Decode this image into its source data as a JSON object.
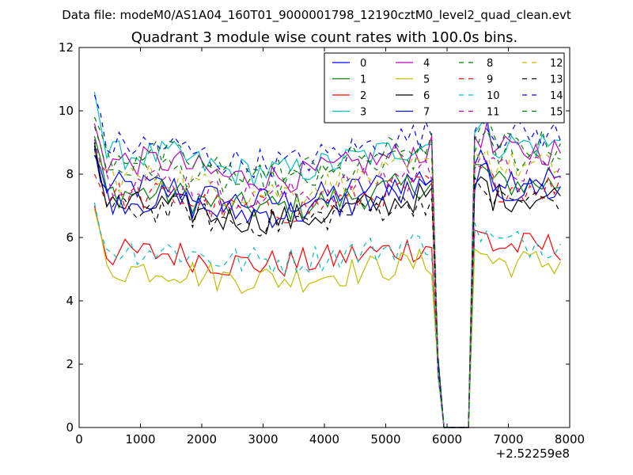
{
  "chart_data": {
    "type": "line",
    "suptitle": "Data file: modeM0/AS1A04_160T01_9000001798_12190cztM0_level2_quad_clean.evt",
    "title": "Quadrant 3 module wise count rates with 100.0s bins.",
    "xlabel": "",
    "ylabel": "",
    "x_offset_label": "+2.52259e8",
    "xlim": [
      0,
      8000
    ],
    "ylim": [
      0,
      12
    ],
    "x_ticks": [
      0,
      1000,
      2000,
      3000,
      4000,
      5000,
      6000,
      7000,
      8000
    ],
    "x_tick_labels": [
      "0",
      "1000",
      "2000",
      "3000",
      "4000",
      "5000",
      "6000",
      "7000",
      "8000"
    ],
    "y_ticks": [
      0,
      2,
      4,
      6,
      8,
      10,
      12
    ],
    "y_tick_labels": [
      "0",
      "2",
      "4",
      "6",
      "8",
      "10",
      "12"
    ],
    "grid": false,
    "legend_position": "top-right",
    "gap": {
      "start": 5900,
      "end": 6400
    },
    "x_start": 250,
    "x_end": 7900,
    "x_step": 100,
    "series": [
      {
        "name": "0",
        "color": "#0000ff",
        "dash": "solid",
        "base": 7.6,
        "start": 8.6
      },
      {
        "name": "1",
        "color": "#008000",
        "dash": "solid",
        "base": 7.4,
        "start": 9.2
      },
      {
        "name": "2",
        "color": "#ff0000",
        "dash": "solid",
        "base": 5.5,
        "start": 7.0
      },
      {
        "name": "3",
        "color": "#00bfbf",
        "dash": "solid",
        "base": 8.6,
        "start": 10.6
      },
      {
        "name": "4",
        "color": "#bf00bf",
        "dash": "solid",
        "base": 8.4,
        "start": 9.6
      },
      {
        "name": "5",
        "color": "#bfbf00",
        "dash": "solid",
        "base": 5.0,
        "start": 6.9
      },
      {
        "name": "6",
        "color": "#000000",
        "dash": "solid",
        "base": 7.0,
        "start": 9.0
      },
      {
        "name": "7",
        "color": "#0000ff",
        "dash": "solid",
        "base": 7.2,
        "start": 8.8
      },
      {
        "name": "8",
        "color": "#008000",
        "dash": "dashed",
        "base": 8.2,
        "start": 9.5
      },
      {
        "name": "9",
        "color": "#ff0000",
        "dash": "dashed",
        "base": 7.3,
        "start": 8.0
      },
      {
        "name": "10",
        "color": "#00bfbf",
        "dash": "dashed",
        "base": 5.6,
        "start": 7.1
      },
      {
        "name": "11",
        "color": "#bf00bf",
        "dash": "dashed",
        "base": 7.8,
        "start": 9.1
      },
      {
        "name": "12",
        "color": "#bfbf00",
        "dash": "dashed",
        "base": 7.9,
        "start": 8.7
      },
      {
        "name": "13",
        "color": "#000000",
        "dash": "dashed",
        "base": 6.9,
        "start": 8.9
      },
      {
        "name": "14",
        "color": "#0000ff",
        "dash": "dashed",
        "base": 8.9,
        "start": 10.5
      },
      {
        "name": "15",
        "color": "#008000",
        "dash": "dashed",
        "base": 8.6,
        "start": 9.8
      }
    ]
  }
}
